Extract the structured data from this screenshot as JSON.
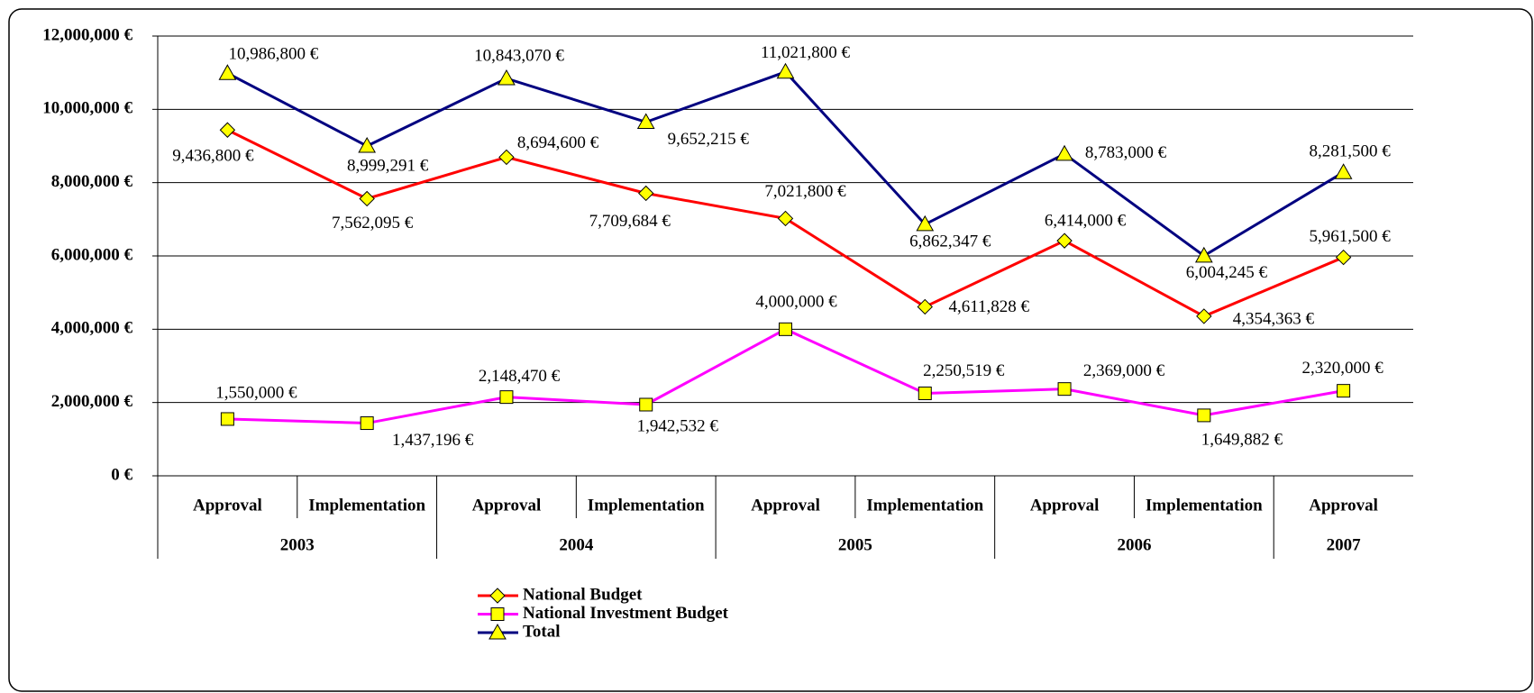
{
  "chart_data": {
    "type": "line",
    "categories": [
      "Approval",
      "Implementation",
      "Approval",
      "Implementation",
      "Approval",
      "Implementation",
      "Approval",
      "Implementation",
      "Approval"
    ],
    "category_groups": [
      "2003",
      "2003",
      "2004",
      "2004",
      "2005",
      "2005",
      "2006",
      "2006",
      "2007"
    ],
    "ylim": [
      0,
      12000000
    ],
    "yticks": [
      {
        "value": 0,
        "label": "0 €"
      },
      {
        "value": 2000000,
        "label": "2,000,000 €"
      },
      {
        "value": 4000000,
        "label": "4,000,000 €"
      },
      {
        "value": 6000000,
        "label": "6,000,000 €"
      },
      {
        "value": 8000000,
        "label": "8,000,000 €"
      },
      {
        "value": 10000000,
        "label": "10,000,000 €"
      },
      {
        "value": 12000000,
        "label": "12,000,000 €"
      }
    ],
    "grid": true,
    "series": [
      {
        "name": "National Budget",
        "color": "#ff0000",
        "marker": "diamond",
        "values": [
          9436800,
          7562095,
          8694600,
          7709684,
          7021800,
          4611828,
          6414000,
          4354363,
          5961500
        ],
        "value_labels": [
          "9,436,800 €",
          "7,562,095 €",
          "8,694,600 €",
          "7,709,684 €",
          "7,021,800 €",
          "4,611,828 €",
          "6,414,000 €",
          "4,354,363 €",
          "5,961,500 €"
        ]
      },
      {
        "name": "National Investment Budget",
        "color": "#ff00ff",
        "marker": "square",
        "values": [
          1550000,
          1437196,
          2148470,
          1942532,
          4000000,
          2250519,
          2369000,
          1649882,
          2320000
        ],
        "value_labels": [
          "1,550,000 €",
          "1,437,196 €",
          "2,148,470 €",
          "1,942,532 €",
          "4,000,000 €",
          "2,250,519 €",
          "2,369,000 €",
          "1,649,882 €",
          "2,320,000 €"
        ]
      },
      {
        "name": "Total",
        "color": "#000080",
        "marker": "triangle",
        "values": [
          10986800,
          8999291,
          10843070,
          9652215,
          11021800,
          6862347,
          8783000,
          6004245,
          8281500
        ],
        "value_labels": [
          "10,986,800 €",
          "8,999,291 €",
          "10,843,070 €",
          "9,652,215 €",
          "11,021,800 €",
          "6,862,347 €",
          "8,783,000 €",
          "6,004,245 €",
          "8,281,500 €"
        ]
      }
    ]
  }
}
